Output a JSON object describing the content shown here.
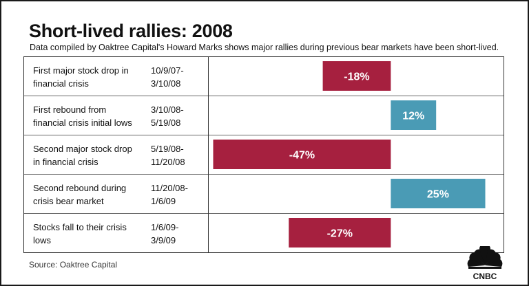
{
  "title": "Short-lived rallies: 2008",
  "subtitle": "Data compiled by Oaktree Capital's Howard Marks shows major rallies during previous bear markets have been short-lived.",
  "source": "Source: Oaktree Capital",
  "logo_text": "CNBC",
  "colors": {
    "negative": "#A6203F",
    "positive": "#4A9BB5",
    "bar_text": "#ffffff"
  },
  "chart_data": {
    "type": "bar",
    "orientation": "horizontal",
    "categories": [
      "First major stock drop in\nfinancial crisis",
      "First rebound from\nfinancial crisis initial lows",
      "Second major stock drop\nin financial crisis",
      "Second rebound during\ncrisis bear market",
      "Stocks fall to their crisis\nlows"
    ],
    "periods": [
      "10/9/07-\n3/10/08",
      "3/10/08-\n5/19/08",
      "5/19/08-\n11/20/08",
      "11/20/08-\n1/6/09",
      "1/6/09-\n3/9/09"
    ],
    "values": [
      -18,
      12,
      -47,
      25,
      -27
    ],
    "value_labels": [
      "-18%",
      "12%",
      "-47%",
      "25%",
      "-27%"
    ],
    "xlim": [
      -48,
      26
    ],
    "grid": false
  }
}
